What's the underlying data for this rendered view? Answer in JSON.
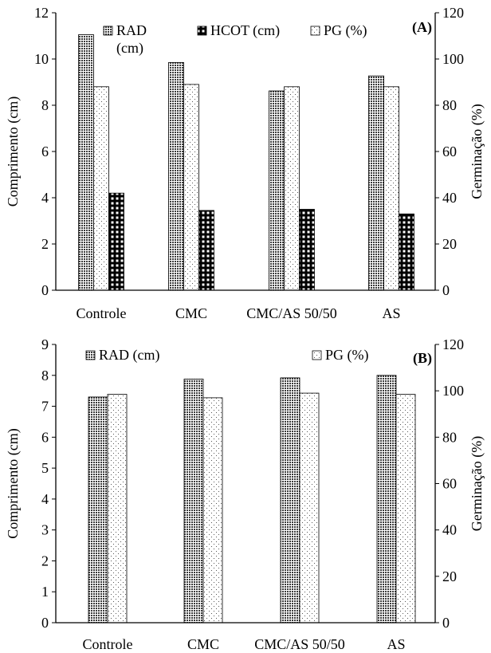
{
  "chart_data": [
    {
      "type": "bar",
      "panel_label": "(A)",
      "categories": [
        "Controle",
        "CMC",
        "CMC/AS 50/50",
        "AS"
      ],
      "series": [
        {
          "name": "RAD (cm)",
          "axis": "left",
          "pattern": "dense-dots",
          "values": [
            11.05,
            9.85,
            8.62,
            9.27
          ]
        },
        {
          "name": "PG (%)",
          "axis": "right",
          "pattern": "sparse-dots",
          "values": [
            88,
            89,
            88,
            88
          ]
        },
        {
          "name": "HCOT (cm)",
          "axis": "left",
          "pattern": "black-grid",
          "values": [
            4.2,
            3.45,
            3.5,
            3.3
          ]
        }
      ],
      "legend": [
        {
          "label": "RAD\n(cm)",
          "pattern": "dense-dots"
        },
        {
          "label": "HCOT (cm)",
          "pattern": "black-grid"
        },
        {
          "label": "PG (%)",
          "pattern": "sparse-dots"
        }
      ],
      "ylabel": "Comprimento (cm)",
      "ylabel_right": "Germinação (%)",
      "ylim": [
        0,
        12
      ],
      "yticks": [
        0,
        2,
        4,
        6,
        8,
        10,
        12
      ],
      "ylim_right": [
        0,
        120
      ],
      "yticks_right": [
        0,
        20,
        40,
        60,
        80,
        100,
        120
      ],
      "grid": false,
      "legend_position": "top"
    },
    {
      "type": "bar",
      "panel_label": "(B)",
      "categories": [
        "Controle",
        "CMC",
        "CMC/AS 50/50",
        "AS"
      ],
      "series": [
        {
          "name": "RAD (cm)",
          "axis": "left",
          "pattern": "dense-dots",
          "values": [
            7.3,
            7.88,
            7.92,
            8.0
          ]
        },
        {
          "name": "PG (%)",
          "axis": "right",
          "pattern": "sparse-dots",
          "values": [
            98.5,
            97,
            99,
            98.5
          ]
        }
      ],
      "legend": [
        {
          "label": "RAD (cm)",
          "pattern": "dense-dots"
        },
        {
          "label": "PG (%)",
          "pattern": "sparse-dots"
        }
      ],
      "ylabel": "Comprimento (cm)",
      "ylabel_right": "Germinação (%)",
      "ylim": [
        0,
        9
      ],
      "yticks": [
        0,
        1,
        2,
        3,
        4,
        5,
        6,
        7,
        8,
        9
      ],
      "ylim_right": [
        0,
        120
      ],
      "yticks_right": [
        0,
        20,
        40,
        60,
        80,
        100,
        120
      ],
      "grid": false,
      "legend_position": "top"
    }
  ]
}
